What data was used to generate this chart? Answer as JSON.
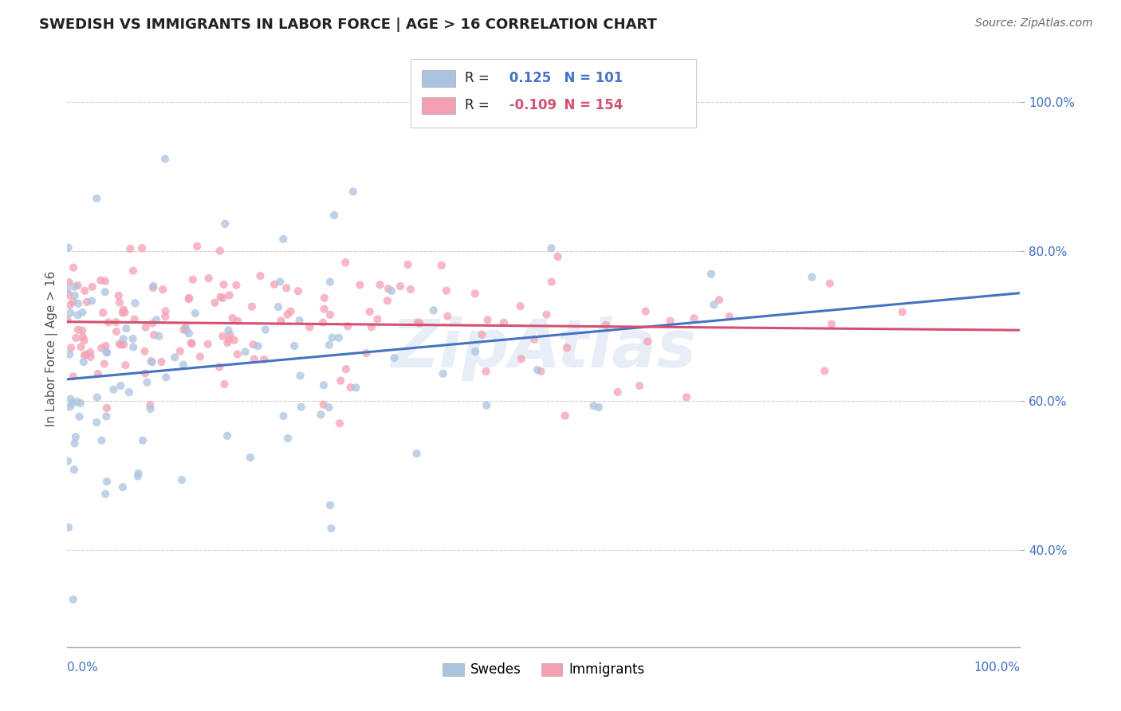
{
  "title": "SWEDISH VS IMMIGRANTS IN LABOR FORCE | AGE > 16 CORRELATION CHART",
  "source": "Source: ZipAtlas.com",
  "ylabel": "In Labor Force | Age > 16",
  "xlim": [
    0.0,
    1.0
  ],
  "ylim": [
    0.27,
    1.07
  ],
  "ytick_vals": [
    0.4,
    0.6,
    0.8,
    1.0
  ],
  "ytick_labels": [
    "40.0%",
    "60.0%",
    "80.0%",
    "100.0%"
  ],
  "swedes_color": "#aac4e0",
  "immigrants_color": "#f4a0b4",
  "swedes_line_color": "#4472c4",
  "immigrants_line_color": "#d45070",
  "swedes_R": 0.125,
  "swedes_N": 101,
  "immigrants_R": -0.109,
  "immigrants_N": 154,
  "background_color": "#ffffff",
  "grid_color": "#d0d0d0",
  "title_color": "#222222",
  "axis_color": "#4472c4",
  "watermark_color": "#d0dff0"
}
